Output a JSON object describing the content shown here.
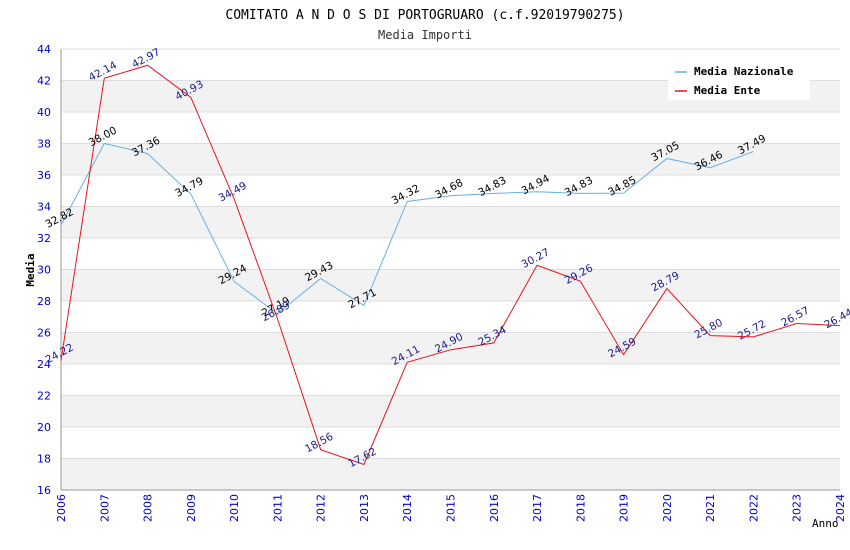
{
  "chart_data": {
    "type": "line",
    "title": "COMITATO A N D O S DI PORTOGRUARO (c.f.92019790275)",
    "subtitle": "Media Importi",
    "xlabel": "Anno",
    "ylabel": "Media",
    "ylim": [
      16,
      44
    ],
    "yticks": [
      16,
      18,
      20,
      22,
      24,
      26,
      28,
      30,
      32,
      34,
      36,
      38,
      40,
      42,
      44
    ],
    "categories": [
      "2006",
      "2007",
      "2008",
      "2009",
      "2010",
      "2011",
      "2012",
      "2013",
      "2014",
      "2015",
      "2016",
      "2017",
      "2018",
      "2019",
      "2020",
      "2021",
      "2022",
      "2023",
      "2024"
    ],
    "grid": true,
    "legend_position": "top-right",
    "series": [
      {
        "name": "Media Nazionale",
        "color": "#6aaee0",
        "label_color": "#000000",
        "values": [
          32.82,
          38.0,
          37.36,
          34.79,
          29.24,
          27.19,
          29.43,
          27.71,
          34.32,
          34.68,
          34.83,
          34.94,
          34.83,
          34.85,
          37.05,
          36.46,
          37.49,
          null,
          null
        ],
        "labels": [
          "32.82",
          "38.00",
          "37.36",
          "34.79",
          "29.24",
          "27.19",
          "29.43",
          "27.71",
          "34.32",
          "34.68",
          "34.83",
          "34.94",
          "34.83",
          "34.85",
          "37.05",
          "36.46",
          "37.49",
          "",
          ""
        ]
      },
      {
        "name": "Media Ente",
        "color": "#e8141c",
        "label_color": "#1a1a8c",
        "values": [
          24.22,
          42.14,
          42.97,
          40.93,
          34.49,
          26.89,
          18.56,
          17.62,
          24.11,
          24.9,
          25.34,
          30.27,
          29.26,
          24.59,
          28.79,
          25.8,
          25.72,
          26.57,
          26.44
        ],
        "labels": [
          "24.22",
          "42.14",
          "42.97",
          "40.93",
          "34.49",
          "26.89",
          "18.56",
          "17.62",
          "24.11",
          "24.90",
          "25.34",
          "30.27",
          "29.26",
          "24.59",
          "28.79",
          "25.80",
          "25.72",
          "26.57",
          "26.44"
        ]
      }
    ],
    "colors": {
      "axis_tick_text": "#0000cc",
      "band": "#f2f2f2",
      "gridline": "#dddddd"
    }
  }
}
